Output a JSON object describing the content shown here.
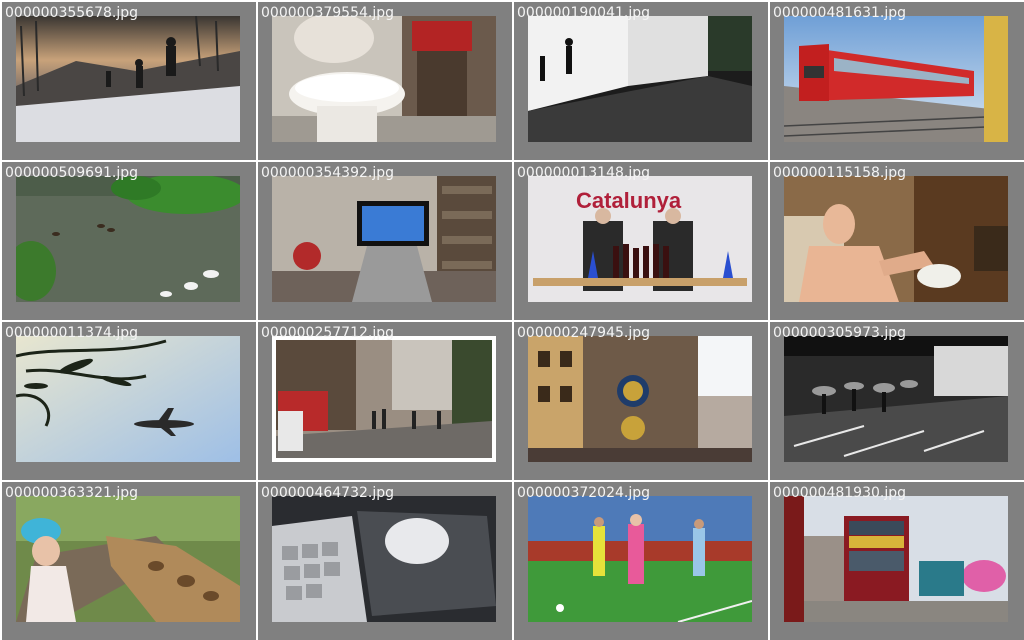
{
  "thumbnails": [
    {
      "filename": "000000355678.jpg",
      "scene": "skiers"
    },
    {
      "filename": "000000379554.jpg",
      "scene": "toilet"
    },
    {
      "filename": "000000190041.jpg",
      "scene": "skateboarders"
    },
    {
      "filename": "000000481631.jpg",
      "scene": "train"
    },
    {
      "filename": "000000509691.jpg",
      "scene": "pond"
    },
    {
      "filename": "000000354392.jpg",
      "scene": "tv-remote"
    },
    {
      "filename": "000000013148.jpg",
      "scene": "wine"
    },
    {
      "filename": "000000115158.jpg",
      "scene": "man-cutting"
    },
    {
      "filename": "000000011374.jpg",
      "scene": "airplane"
    },
    {
      "filename": "000000257712.jpg",
      "scene": "street"
    },
    {
      "filename": "000000247945.jpg",
      "scene": "clock-tower"
    },
    {
      "filename": "000000305973.jpg",
      "scene": "umbrellas"
    },
    {
      "filename": "000000363321.jpg",
      "scene": "giraffe"
    },
    {
      "filename": "000000464732.jpg",
      "scene": "mouse"
    },
    {
      "filename": "000000372024.jpg",
      "scene": "soccer"
    },
    {
      "filename": "000000481930.jpg",
      "scene": "bus"
    }
  ],
  "photo_texts": {
    "catalunya_banner": "Catalunya"
  }
}
